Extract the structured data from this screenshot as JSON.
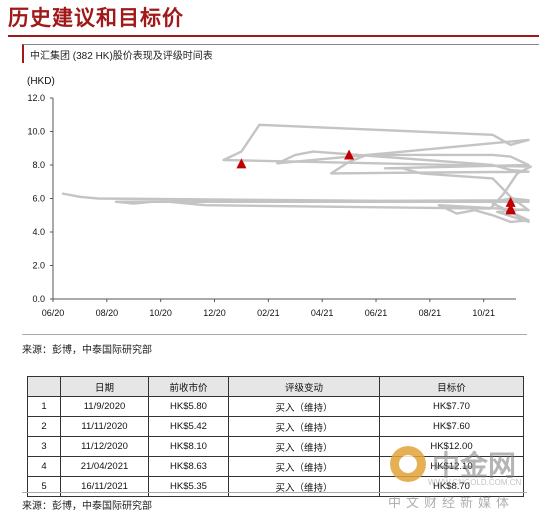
{
  "page": {
    "title": "历史建议和目标价",
    "subtitle": "中汇集团 (382 HK)股价表现及评级时间表",
    "source_top": "来源：彭博，中泰国际研究部",
    "source_bottom": "来源：彭博，中泰国际研究部"
  },
  "chart_data": {
    "type": "line",
    "title": "",
    "xlabel": "",
    "ylabel": "(HKD)",
    "ylim": [
      0,
      12
    ],
    "yticks": [
      "0.0",
      "2.0",
      "4.0",
      "6.0",
      "8.0",
      "10.0",
      "12.0"
    ],
    "xticks": [
      "06/20",
      "08/20",
      "10/20",
      "12/20",
      "02/21",
      "04/21",
      "06/21",
      "08/21",
      "10/21"
    ],
    "grid": false,
    "series": [
      {
        "name": "",
        "color": "#c4c4c4",
        "x": [
          "06/20",
          "06/20",
          "06/20",
          "07/20",
          "07/20",
          "07/20",
          "08/20",
          "08/20",
          "08/20",
          "09/20",
          "09/20",
          "09/20",
          "10/20",
          "10/20",
          "10/20",
          "11/20",
          "11/20",
          "11/20",
          "11/20",
          "12/20",
          "12/20",
          "12/20",
          "01/21",
          "01/21",
          "01/21",
          "02/21",
          "02/21",
          "02/21",
          "03/21",
          "03/21",
          "03/21",
          "04/21",
          "04/21",
          "04/21",
          "05/21",
          "05/21",
          "05/21",
          "06/21",
          "06/21",
          "06/21",
          "07/21",
          "07/21",
          "07/21",
          "08/21",
          "08/21",
          "08/21",
          "09/21",
          "09/21",
          "09/21",
          "10/21",
          "10/21",
          "10/21",
          "11/21",
          "11/21"
        ],
        "values": [
          6.3,
          6.1,
          6.0,
          5.8,
          6.0,
          5.9,
          5.8,
          5.7,
          5.8,
          5.8,
          5.9,
          5.8,
          5.8,
          5.7,
          5.6,
          5.4,
          6.3,
          7.5,
          7.9,
          8.3,
          8.8,
          10.4,
          9.8,
          9.2,
          9.5,
          8.1,
          8.6,
          8.8,
          8.0,
          7.7,
          7.6,
          7.5,
          8.2,
          8.6,
          8.6,
          8.5,
          8.0,
          7.8,
          7.8,
          7.5,
          7.2,
          6.1,
          5.3,
          5.6,
          5.1,
          5.3,
          5.0,
          4.6,
          4.7,
          5.7,
          5.2,
          4.6,
          5.2,
          5.35
        ]
      }
    ],
    "markers": [
      {
        "date": "11/9/2020",
        "x": "09/20",
        "y": 5.8
      },
      {
        "date": "11/11/2020",
        "x": "11/20",
        "y": 5.42
      },
      {
        "date": "11/12/2020",
        "x": "12/20",
        "y": 8.1
      },
      {
        "date": "21/04/2021",
        "x": "04/21",
        "y": 8.63
      },
      {
        "date": "16/11/2021",
        "x": "11/21",
        "y": 5.35
      }
    ],
    "marker_color": "#c00000"
  },
  "table": {
    "headers": [
      "",
      "日期",
      "前收市价",
      "评级变动",
      "目标价"
    ],
    "rows": [
      [
        "1",
        "11/9/2020",
        "HK$5.80",
        "买入（维持）",
        "HK$7.70"
      ],
      [
        "2",
        "11/11/2020",
        "HK$5.42",
        "买入（维持）",
        "HK$7.60"
      ],
      [
        "3",
        "11/12/2020",
        "HK$8.10",
        "买入（维持）",
        "HK$12.00"
      ],
      [
        "4",
        "21/04/2021",
        "HK$8.63",
        "买入（维持）",
        "HK$12.10"
      ],
      [
        "5",
        "16/11/2021",
        "HK$5.35",
        "买入（维持）",
        "HK$8.70"
      ]
    ]
  },
  "watermark": {
    "main": "中金网",
    "url": "WWW.CNGOLD.COM.CN",
    "sub": "中文财经新媒体"
  }
}
